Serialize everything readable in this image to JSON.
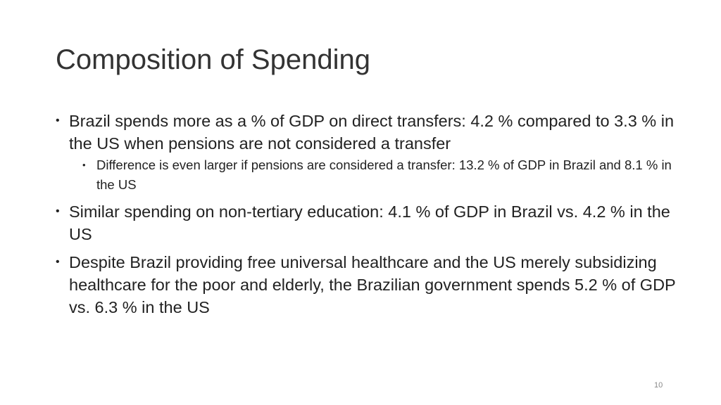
{
  "slide": {
    "title": "Composition of Spending",
    "page_number": "10",
    "bullets": [
      {
        "text": "Brazil spends more as a % of GDP on direct transfers: 4.2 % compared to 3.3 % in the US when pensions are not considered a transfer",
        "subbullets": [
          "Difference is even larger if pensions are considered a transfer: 13.2 % of GDP in Brazil and 8.1 % in the US"
        ]
      },
      {
        "text": "Similar spending on non-tertiary education: 4.1 % of GDP in Brazil vs. 4.2 % in the US"
      },
      {
        "text": "Despite Brazil providing free universal healthcare and the US merely subsidizing healthcare for the poor and elderly, the Brazilian government spends 5.2 % of GDP vs. 6.3 % in the US"
      }
    ]
  }
}
